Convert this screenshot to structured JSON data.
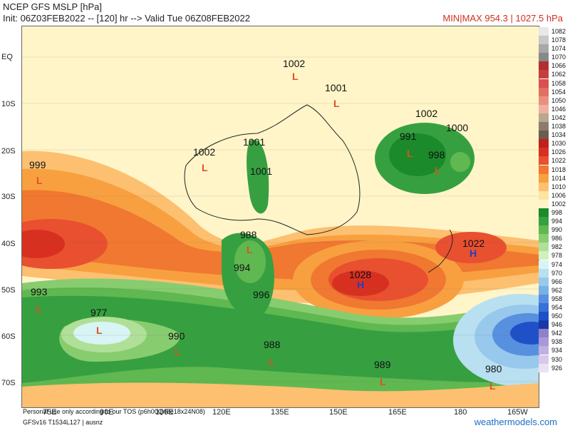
{
  "header": {
    "title": "NCEP GFS MSLP [hPa]",
    "init_line": "Init: 06Z03FEB2022 -- [120] hr --> Valid Tue 06Z08FEB2022",
    "range": "MIN|MAX 954.3 | 1027.5 hPa"
  },
  "axes": {
    "lat": [
      "EQ",
      "10S",
      "20S",
      "30S",
      "40S",
      "50S",
      "60S",
      "70S"
    ],
    "lon": [
      "75E",
      "90E",
      "105E",
      "120E",
      "135E",
      "150E",
      "165E",
      "180",
      "165W"
    ]
  },
  "legend": {
    "levels": [
      "1082",
      "1078",
      "1074",
      "1070",
      "1066",
      "1062",
      "1058",
      "1054",
      "1050",
      "1046",
      "1042",
      "1038",
      "1034",
      "1030",
      "1026",
      "1022",
      "1018",
      "1014",
      "1010",
      "1006",
      "1002",
      "998",
      "994",
      "990",
      "986",
      "982",
      "978",
      "974",
      "970",
      "966",
      "962",
      "958",
      "954",
      "950",
      "946",
      "942",
      "938",
      "934",
      "930",
      "926"
    ],
    "colors": [
      "#e8e8e8",
      "#c8c8c8",
      "#a8a8a8",
      "#888888",
      "#b03030",
      "#c83c3c",
      "#d85050",
      "#e07060",
      "#e89080",
      "#f0b0a0",
      "#b8a890",
      "#8c7c6c",
      "#6c5c4c",
      "#c02020",
      "#d83020",
      "#e85030",
      "#f07830",
      "#f8a040",
      "#fcc070",
      "#fde4a0",
      "#fff5c8",
      "#1a8a2a",
      "#36a040",
      "#60b850",
      "#88cc70",
      "#b0e098",
      "#d0f0c0",
      "#d8f4f4",
      "#b8e0f0",
      "#98c8ec",
      "#78b0e8",
      "#5890e0",
      "#3870d8",
      "#2050c8",
      "#1838a8",
      "#9080c8",
      "#a898d8",
      "#c0b0e0",
      "#d8c8ec",
      "#ece0f4"
    ]
  },
  "pressure_labels": [
    {
      "text": "1002"
    },
    {
      "text": "1001"
    },
    {
      "text": "1001"
    },
    {
      "text": "1001"
    },
    {
      "text": "1002"
    },
    {
      "text": "999"
    },
    {
      "text": "1002"
    },
    {
      "text": "1000"
    },
    {
      "text": "991"
    },
    {
      "text": "998"
    },
    {
      "text": "988"
    },
    {
      "text": "994"
    },
    {
      "text": "996"
    },
    {
      "text": "1028"
    },
    {
      "text": "1022"
    },
    {
      "text": "993"
    },
    {
      "text": "977"
    },
    {
      "text": "990"
    },
    {
      "text": "988"
    },
    {
      "text": "989"
    },
    {
      "text": "980"
    }
  ],
  "systems": {
    "low": "L",
    "high": "H"
  },
  "footer": {
    "usage": "Personal use only according to our TOS (p6h00Q48e18x24N08)",
    "model": "GFSv16 T1534L127 | ausnz",
    "site": "weathermodels.com"
  },
  "colors": {
    "background_high": "#fff5c8",
    "ridge": "#f07830",
    "trough_green": "#1a8a2a",
    "deep_low": "#2050c8"
  }
}
